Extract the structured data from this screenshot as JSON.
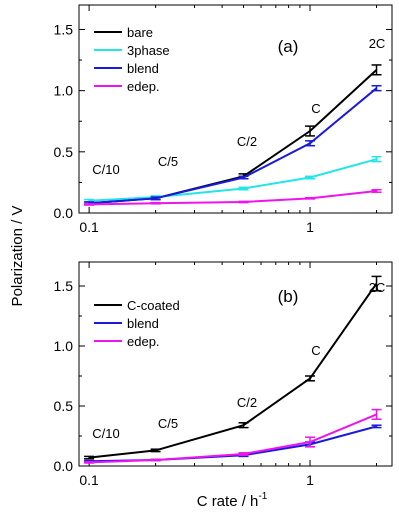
{
  "figure": {
    "ylabel": "Polarization / V",
    "xlabel_main": "C rate / h",
    "xlabel_sup": "-1"
  },
  "chart_data": [
    {
      "type": "line",
      "panel_label": "(a)",
      "x": [
        0.1,
        0.2,
        0.5,
        1,
        2
      ],
      "x_scale": "log",
      "xlim": [
        0.09,
        2.35
      ],
      "x_ticks": [
        "0.1",
        "1"
      ],
      "ylim": [
        0,
        1.7
      ],
      "y_ticks": [
        "0.0",
        "0.5",
        "1.0",
        "1.5"
      ],
      "rate_labels": [
        "C/10",
        "C/5",
        "C/2",
        "C",
        "2C"
      ],
      "legend_position": "top-left",
      "grid": false,
      "series": [
        {
          "name": "bare",
          "color": "#000000",
          "values": [
            0.08,
            0.12,
            0.3,
            0.67,
            1.17
          ],
          "errors": [
            0.01,
            0.01,
            0.02,
            0.04,
            0.04
          ]
        },
        {
          "name": "3phase",
          "color": "#22e6e6",
          "values": [
            0.1,
            0.13,
            0.2,
            0.29,
            0.44
          ],
          "errors": [
            0.01,
            0.01,
            0.01,
            0.01,
            0.02
          ]
        },
        {
          "name": "blend",
          "color": "#1a1adf",
          "values": [
            0.08,
            0.12,
            0.29,
            0.57,
            1.02
          ],
          "errors": [
            0.01,
            0.01,
            0.01,
            0.02,
            0.02
          ]
        },
        {
          "name": "edep.",
          "color": "#ee14ee",
          "values": [
            0.07,
            0.08,
            0.09,
            0.12,
            0.18
          ],
          "errors": [
            0.005,
            0.005,
            0.005,
            0.005,
            0.01
          ]
        }
      ]
    },
    {
      "type": "line",
      "panel_label": "(b)",
      "x": [
        0.1,
        0.2,
        0.5,
        1,
        2
      ],
      "x_scale": "log",
      "xlim": [
        0.09,
        2.35
      ],
      "x_ticks": [
        "0.1",
        "1"
      ],
      "ylim": [
        0,
        1.7
      ],
      "y_ticks": [
        "0.0",
        "0.5",
        "1.0",
        "1.5"
      ],
      "rate_labels": [
        "C/10",
        "C/5",
        "C/2",
        "C",
        "2C"
      ],
      "legend_position": "top-left",
      "grid": false,
      "series": [
        {
          "name": "C-coated",
          "color": "#000000",
          "values": [
            0.07,
            0.13,
            0.34,
            0.73,
            1.52
          ],
          "errors": [
            0.01,
            0.01,
            0.02,
            0.02,
            0.06
          ]
        },
        {
          "name": "blend",
          "color": "#1a1adf",
          "values": [
            0.04,
            0.05,
            0.09,
            0.18,
            0.33
          ],
          "errors": [
            0.005,
            0.005,
            0.01,
            0.02,
            0.01
          ]
        },
        {
          "name": "edep.",
          "color": "#ee14ee",
          "values": [
            0.03,
            0.05,
            0.1,
            0.2,
            0.43
          ],
          "errors": [
            0.005,
            0.005,
            0.01,
            0.04,
            0.04
          ]
        }
      ]
    }
  ]
}
